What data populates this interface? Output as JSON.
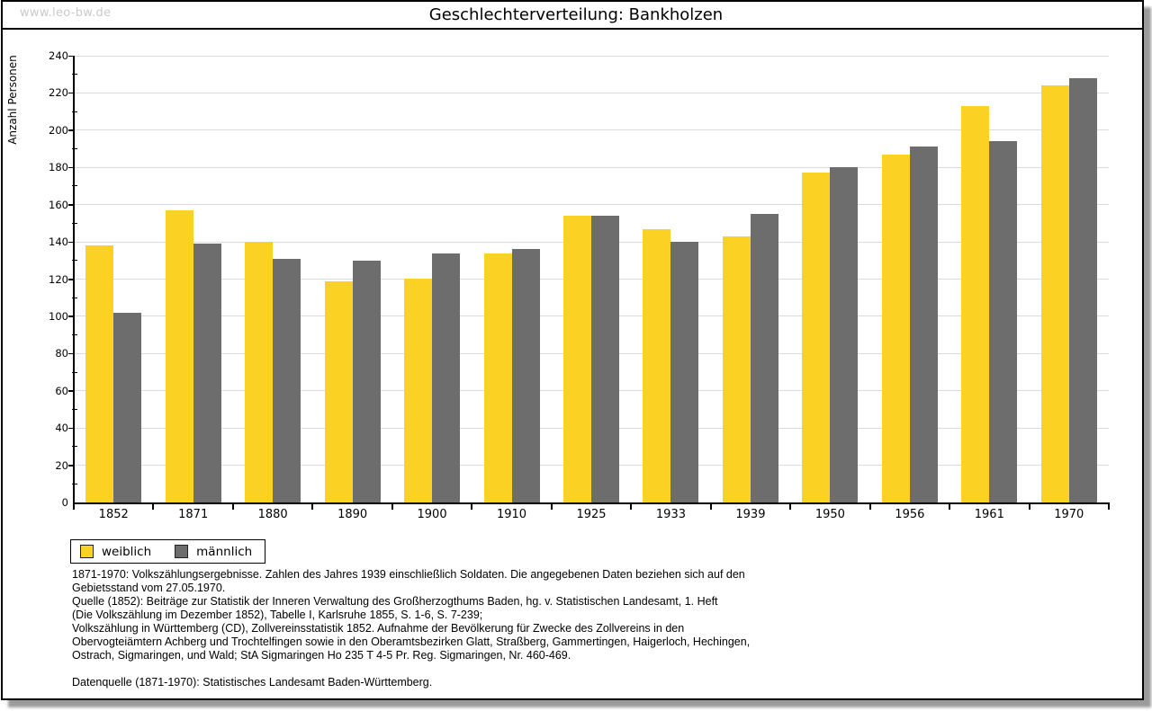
{
  "watermark": "www.leo-bw.de",
  "title": "Geschlechterverteilung: Bankholzen",
  "chart_data": {
    "type": "bar",
    "title": "Geschlechterverteilung: Bankholzen",
    "categories": [
      "1852",
      "1871",
      "1880",
      "1890",
      "1900",
      "1910",
      "1925",
      "1933",
      "1939",
      "1950",
      "1956",
      "1961",
      "1970"
    ],
    "series": [
      {
        "name": "weiblich",
        "color": "#FBD123",
        "values": [
          138,
          157,
          140,
          119,
          120,
          134,
          154,
          147,
          143,
          177,
          187,
          213,
          224
        ]
      },
      {
        "name": "männlich",
        "color": "#6D6D6D",
        "values": [
          102,
          139,
          131,
          130,
          134,
          136,
          154,
          140,
          155,
          180,
          191,
          194,
          228
        ]
      }
    ],
    "xlabel": "",
    "ylabel": "Anzahl Personen",
    "ylim": [
      0,
      240
    ],
    "ytick_step": 20,
    "ytick_minor_step": 10,
    "grid": true,
    "gridline_color": "#dbdbdb",
    "axis_color": "#000000",
    "legend_position": "bottom-left"
  },
  "notes": {
    "lines": [
      "1871-1970: Volkszählungsergebnisse. Zahlen des Jahres 1939 einschließlich Soldaten. Die angegebenen Daten beziehen sich auf den",
      "Gebietsstand vom 27.05.1970.",
      "Quelle (1852): Beiträge zur Statistik der Inneren Verwaltung des Großherzogthums Baden, hg. v. Statistischen Landesamt, 1. Heft",
      "(Die Volkszählung im Dezember 1852), Tabelle I, Karlsruhe 1855, S. 1-6, S. 7-239;",
      "Volkszählung in Württemberg (CD), Zollvereinsstatistik 1852. Aufnahme der Bevölkerung für Zwecke des Zollvereins in den",
      "Obervogteiämtern Achberg und Trochtelfingen sowie in den Oberamtsbezirken Glatt, Straßberg, Gammertingen, Haigerloch, Hechingen,",
      "Ostrach, Sigmaringen, und Wald; StA Sigmaringen Ho 235 T 4-5 Pr. Reg. Sigmaringen, Nr. 460-469.",
      "",
      "Datenquelle (1871-1970): Statistisches Landesamt Baden-Württemberg."
    ]
  }
}
